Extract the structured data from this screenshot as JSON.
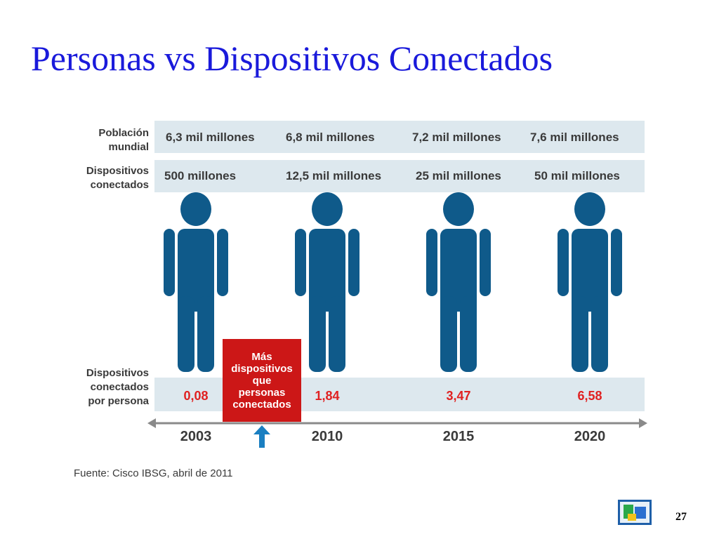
{
  "title": "Personas vs Dispositivos Conectados",
  "infographic": {
    "row_labels": {
      "population_line1": "Población",
      "population_line2": "mundial",
      "devices_line1": "Dispositivos",
      "devices_line2": "conectados",
      "per_person_line1": "Dispositivos",
      "per_person_line2": "conectados",
      "per_person_line3": "por persona"
    },
    "columns": [
      {
        "year": "2003",
        "population": "6,3 mil millones",
        "devices": "500 millones",
        "per_person": "0,08"
      },
      {
        "year": "2010",
        "population": "6,8 mil millones",
        "devices": "12,5 mil millones",
        "per_person": "1,84"
      },
      {
        "year": "2015",
        "population": "7,2 mil millones",
        "devices": "25 mil millones",
        "per_person": "3,47"
      },
      {
        "year": "2020",
        "population": "7,6 mil millones",
        "devices": "50 mil millones",
        "per_person": "6,58"
      }
    ],
    "callout": {
      "line1": "Más",
      "line2": "dispositivos",
      "line3": "que",
      "line4": "personas",
      "line5": "conectados"
    },
    "source": "Fuente: Cisco IBSG, abril de 2011"
  },
  "colors": {
    "title": "#1a1adb",
    "person": "#0f5a8a",
    "band": "#dde8ee",
    "callout": "#cc1717",
    "ratio_text": "#e02121",
    "arrow": "#1a7fc1",
    "label_text": "#3a3a3a"
  },
  "icons": {
    "person": "person-icon",
    "arrow": "up-arrow-icon",
    "logo": "logo-icon"
  },
  "page_number": "27"
}
